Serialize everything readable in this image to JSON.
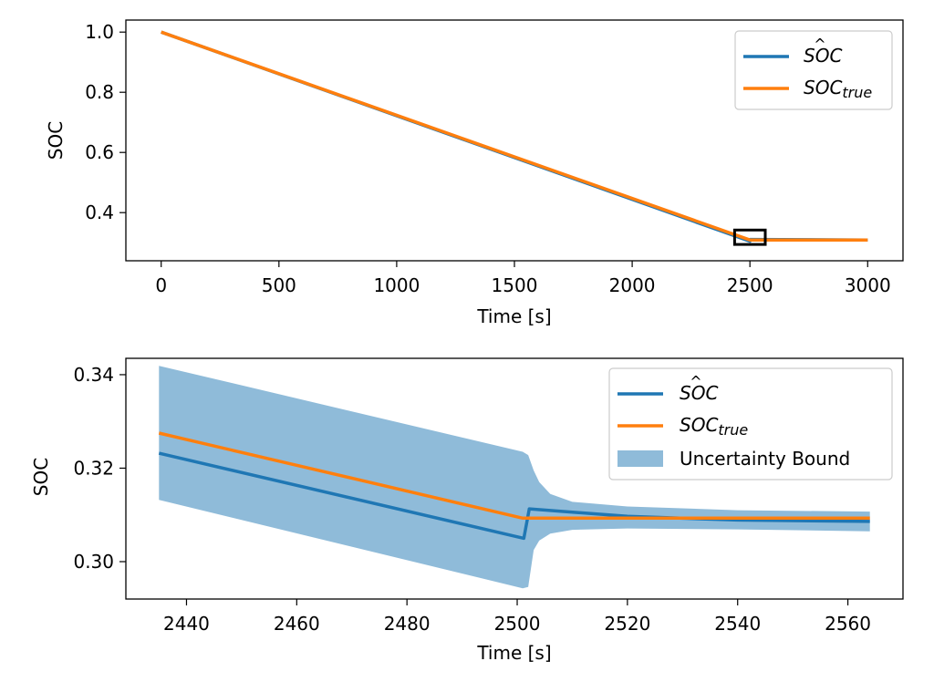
{
  "chart_data": [
    {
      "type": "line",
      "xlabel": "Time [s]",
      "ylabel": "SOC",
      "xlim": [
        -150,
        3150
      ],
      "ylim": [
        0.24,
        1.04
      ],
      "xticks": [
        0,
        500,
        1000,
        1500,
        2000,
        2500,
        3000
      ],
      "xtick_labels": [
        "0",
        "500",
        "1000",
        "1500",
        "2000",
        "2500",
        "3000"
      ],
      "yticks": [
        0.4,
        0.6,
        0.8,
        1.0
      ],
      "ytick_labels": [
        "0.4",
        "0.6",
        "0.8",
        "1.0"
      ],
      "legend_position": "upper-right",
      "series": [
        {
          "name": "SOC_hat",
          "legend": {
            "base": "SOC",
            "hat": "^",
            "sub": ""
          },
          "color": "#1f77b4",
          "x": [
            0,
            2500,
            2501,
            3000
          ],
          "y": [
            1.0,
            0.305,
            0.311,
            0.309
          ]
        },
        {
          "name": "SOC_true",
          "legend": {
            "base": "SOC",
            "hat": "",
            "sub": "true"
          },
          "color": "#ff7f0e",
          "x": [
            0,
            2500,
            3000
          ],
          "y": [
            1.0,
            0.309,
            0.309
          ]
        }
      ],
      "zoom_box": {
        "x": [
          2435,
          2565
        ],
        "y": [
          0.294,
          0.342
        ]
      }
    },
    {
      "type": "line",
      "xlabel": "Time [s]",
      "ylabel": "SOC",
      "xlim": [
        2429,
        2570
      ],
      "ylim": [
        0.292,
        0.3435
      ],
      "xticks": [
        2440,
        2460,
        2480,
        2500,
        2520,
        2540,
        2560
      ],
      "xtick_labels": [
        "2440",
        "2460",
        "2480",
        "2500",
        "2520",
        "2540",
        "2560"
      ],
      "yticks": [
        0.3,
        0.32,
        0.34
      ],
      "ytick_labels": [
        "0.30",
        "0.32",
        "0.34"
      ],
      "legend_position": "upper-right",
      "series": [
        {
          "name": "SOC_hat",
          "legend": {
            "base": "SOC",
            "hat": "^",
            "sub": ""
          },
          "color": "#1f77b4",
          "x": [
            2435,
            2501.2,
            2502.2,
            2520,
            2540,
            2564
          ],
          "y": [
            0.3232,
            0.305,
            0.3113,
            0.3097,
            0.3089,
            0.3086
          ]
        },
        {
          "name": "SOC_true",
          "legend": {
            "base": "SOC",
            "hat": "",
            "sub": "true"
          },
          "color": "#ff7f0e",
          "x": [
            2435,
            2501,
            2564
          ],
          "y": [
            0.3275,
            0.3093,
            0.3093
          ]
        }
      ],
      "band": {
        "name": "Uncertainty Bound",
        "color": "#1f77b4",
        "opacity": 0.5,
        "upper_x": [
          2435,
          2501,
          2502,
          2503,
          2504,
          2506,
          2510,
          2520,
          2540,
          2564
        ],
        "upper_y": [
          0.3419,
          0.3235,
          0.3228,
          0.3195,
          0.317,
          0.3145,
          0.3128,
          0.3118,
          0.311,
          0.3107
        ],
        "lower_x": [
          2435,
          2501,
          2502,
          2503,
          2504,
          2506,
          2510,
          2520,
          2540,
          2564
        ],
        "lower_y": [
          0.3132,
          0.2943,
          0.2946,
          0.3025,
          0.3045,
          0.306,
          0.3068,
          0.3071,
          0.3069,
          0.3065
        ]
      }
    }
  ]
}
